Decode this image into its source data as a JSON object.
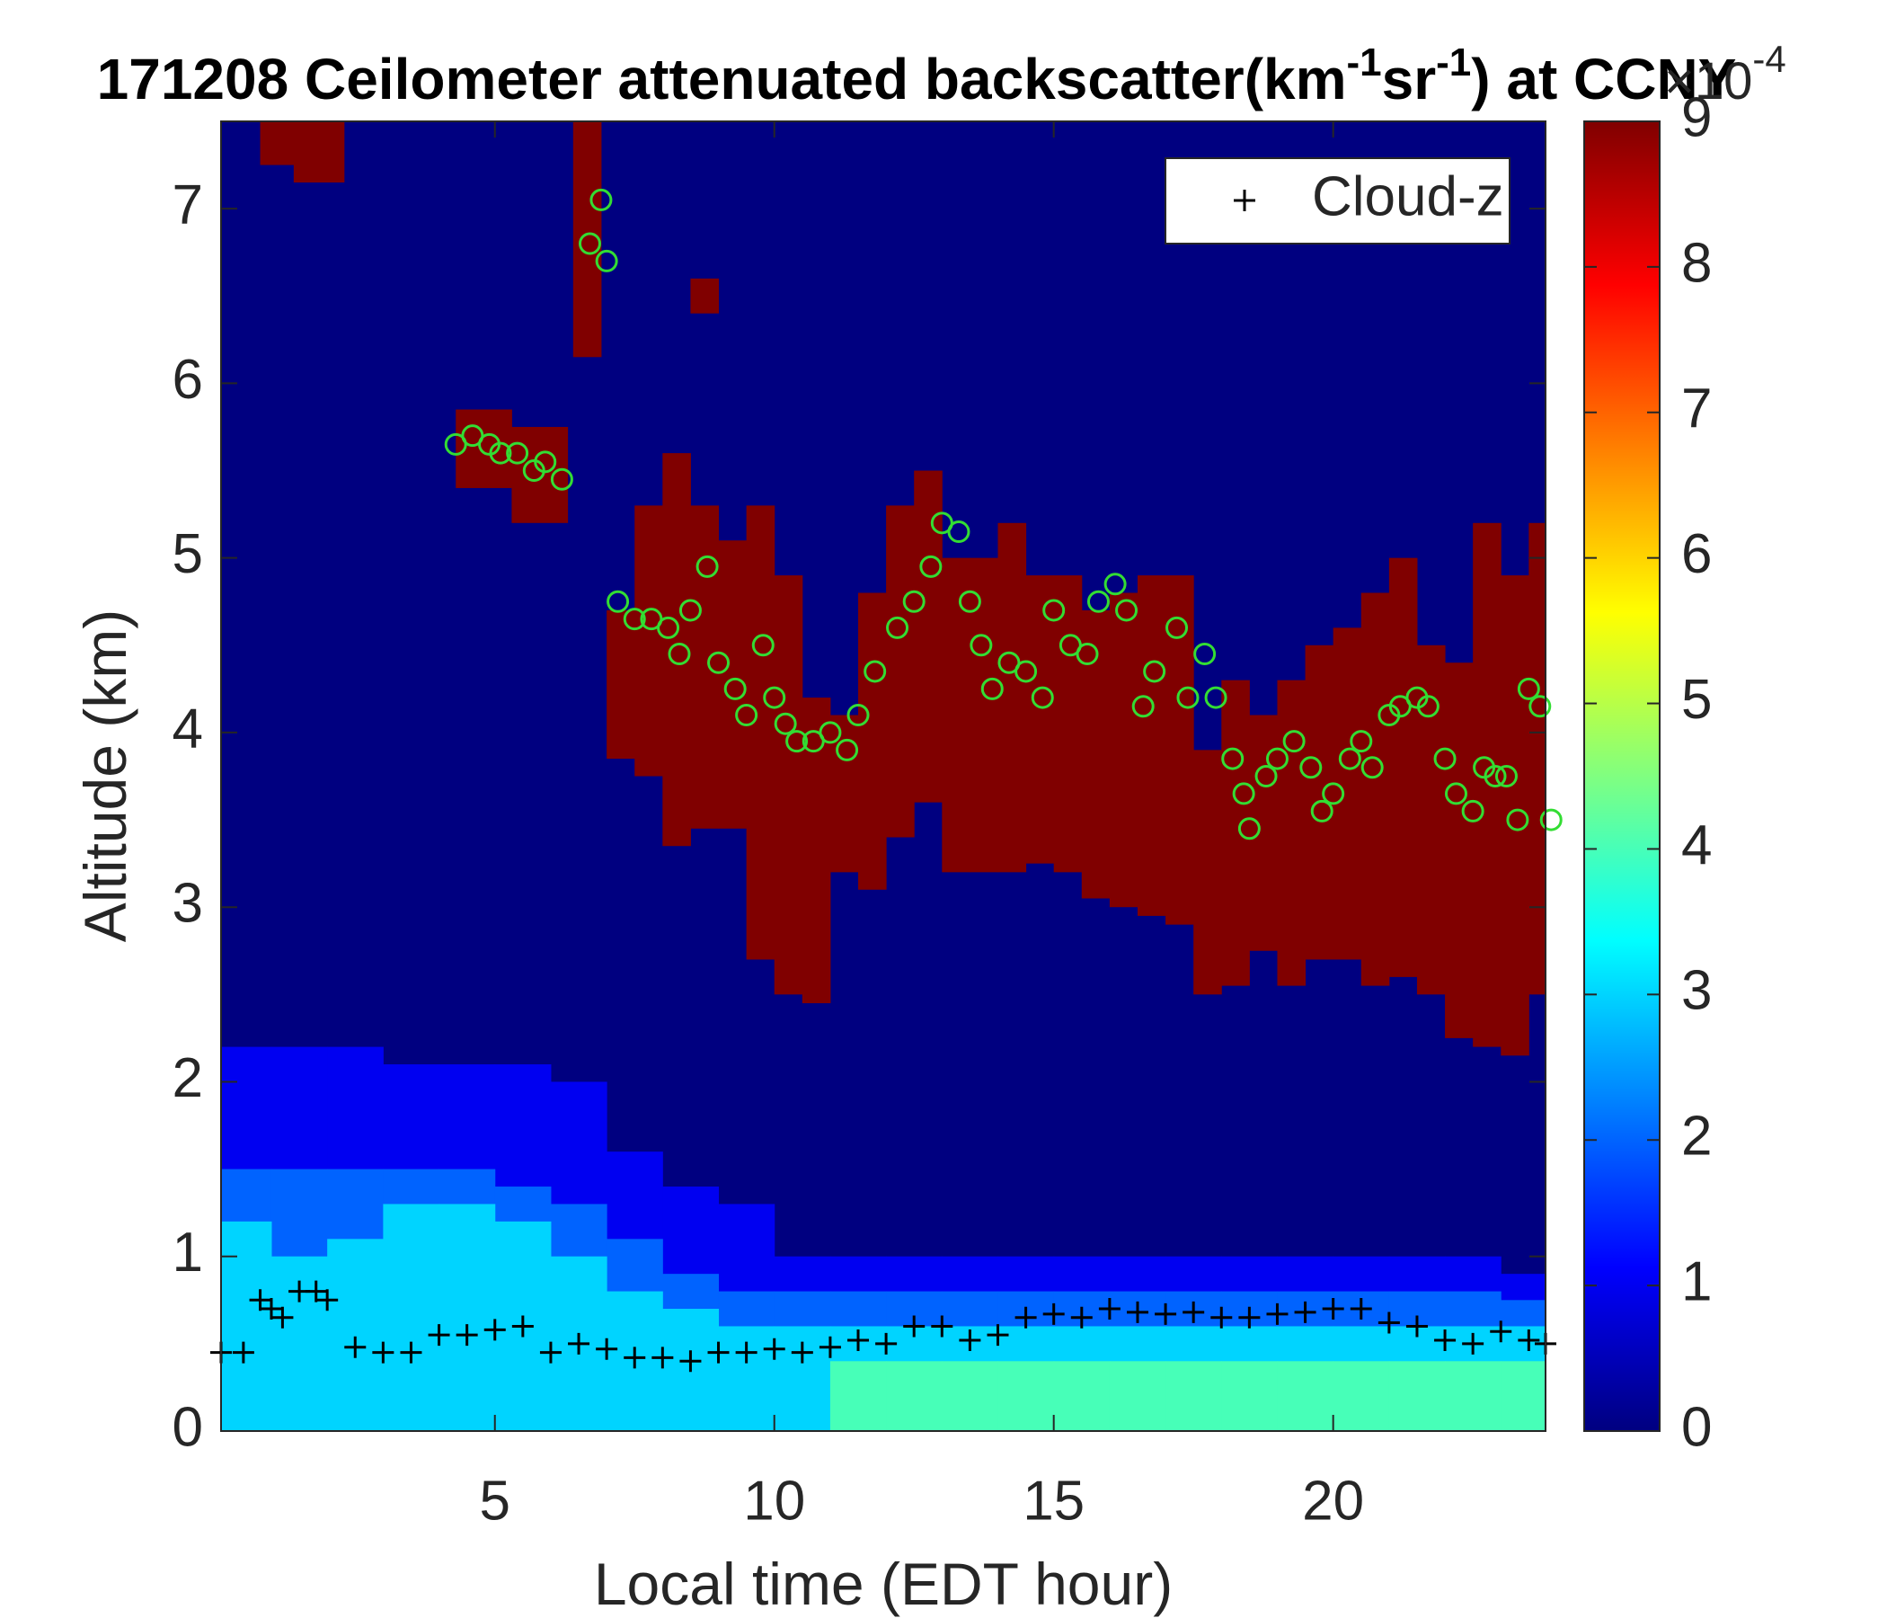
{
  "chart_data": {
    "type": "heatmap",
    "title": [
      "171208 Ceilometer attenuated backscatter(km",
      "-1",
      "sr",
      "-1",
      ") at CCNY"
    ],
    "x_label": "Local time (EDT hour)",
    "y_label": "Altitude (km)",
    "xlim": [
      0.1,
      23.8
    ],
    "xticks": [
      5,
      10,
      15,
      20
    ],
    "ylim": [
      0,
      7.5
    ],
    "yticks": [
      0,
      1,
      2,
      3,
      4,
      5,
      6,
      7
    ],
    "legend": "upper right",
    "colorbar": {
      "lim": [
        0,
        9
      ],
      "ticks": [
        0,
        1,
        2,
        3,
        4,
        5,
        6,
        7,
        8,
        9
      ],
      "multiplier": "×10",
      "exponent": "-4"
    },
    "layers": [
      {
        "value": 1,
        "x_edges": [
          0.1,
          1,
          2,
          3,
          4,
          5,
          6,
          7,
          8,
          9,
          10,
          11,
          12,
          13,
          14,
          15,
          16,
          17,
          18,
          19,
          20,
          21,
          22,
          23,
          23.8
        ],
        "top": [
          2.2,
          2.2,
          2.2,
          2.1,
          2.1,
          2.1,
          2.0,
          1.6,
          1.4,
          1.3,
          1.0,
          1.0,
          1.0,
          1.0,
          1.0,
          1.0,
          1.0,
          1.0,
          1.0,
          1.0,
          1.0,
          1.0,
          1.0,
          0.9
        ]
      },
      {
        "value": 2,
        "x_edges": [
          0.1,
          1,
          2,
          3,
          4,
          5,
          6,
          7,
          8,
          9,
          10,
          11,
          12,
          13,
          14,
          15,
          16,
          17,
          18,
          19,
          20,
          21,
          22,
          23,
          23.8
        ],
        "top": [
          1.5,
          1.5,
          1.5,
          1.5,
          1.5,
          1.4,
          1.3,
          1.1,
          0.9,
          0.8,
          0.8,
          0.8,
          0.8,
          0.8,
          0.8,
          0.8,
          0.8,
          0.8,
          0.8,
          0.8,
          0.8,
          0.8,
          0.8,
          0.75
        ]
      },
      {
        "value": 3,
        "x_edges": [
          0.1,
          1,
          2,
          3,
          4,
          5,
          6,
          7,
          8,
          9,
          10,
          11,
          12,
          13,
          14,
          15,
          16,
          17,
          18,
          19,
          20,
          21,
          22,
          23,
          23.8
        ],
        "top": [
          1.2,
          1.0,
          1.1,
          1.3,
          1.3,
          1.2,
          1.0,
          0.8,
          0.7,
          0.6,
          0.6,
          0.6,
          0.6,
          0.6,
          0.6,
          0.6,
          0.6,
          0.6,
          0.6,
          0.6,
          0.6,
          0.6,
          0.6,
          0.6
        ]
      },
      {
        "value": 4,
        "x_edges": [
          11,
          12,
          13,
          14,
          15,
          16,
          17,
          18,
          19,
          20,
          21,
          22,
          23,
          23.8
        ],
        "top": [
          0.4,
          0.4,
          0.4,
          0.4,
          0.4,
          0.4,
          0.4,
          0.4,
          0.4,
          0.4,
          0.4,
          0.4,
          0.4
        ]
      },
      {
        "value": 9,
        "x_edges": [
          0.8,
          1.4,
          2.3
        ],
        "bottom": [
          7.25,
          7.15
        ],
        "top": [
          7.5,
          7.5
        ]
      },
      {
        "value": 9,
        "x_edges": [
          4.3,
          5.3,
          6.3
        ],
        "bottom": [
          5.4,
          5.2
        ],
        "top": [
          5.85,
          5.75
        ]
      },
      {
        "value": 9,
        "x_edges": [
          6.4,
          6.9
        ],
        "bottom": [
          6.15
        ],
        "top": [
          7.5
        ]
      },
      {
        "value": 9,
        "x_edges": [
          8.5,
          9.0
        ],
        "bottom": [
          6.4
        ],
        "top": [
          6.6
        ]
      },
      {
        "value": 9,
        "x_edges": [
          7,
          7.5,
          8,
          8.5,
          9,
          9.5,
          10,
          10.5,
          11,
          11.5,
          12,
          12.5,
          13,
          13.5,
          14,
          14.5,
          15,
          15.5,
          16,
          16.5,
          17,
          17.5,
          18,
          18.5,
          19,
          19.5,
          20,
          20.5,
          21,
          21.5,
          22,
          22.5,
          23,
          23.5,
          23.8
        ],
        "bottom": [
          3.85,
          3.75,
          3.35,
          3.45,
          3.45,
          2.7,
          2.5,
          2.45,
          3.2,
          3.1,
          3.4,
          3.6,
          3.2,
          3.2,
          3.2,
          3.25,
          3.2,
          3.05,
          3.0,
          2.95,
          2.9,
          2.5,
          2.55,
          2.75,
          2.55,
          2.7,
          2.7,
          2.55,
          2.6,
          2.5,
          2.25,
          2.2,
          2.15,
          2.5
        ],
        "top": [
          4.7,
          5.3,
          5.6,
          5.3,
          5.1,
          5.3,
          4.9,
          4.2,
          4.1,
          4.8,
          5.3,
          5.5,
          5.0,
          5.0,
          5.2,
          4.9,
          4.9,
          4.7,
          4.8,
          4.9,
          4.9,
          3.9,
          4.3,
          4.1,
          4.3,
          4.5,
          4.6,
          4.8,
          5.0,
          4.5,
          4.4,
          5.2,
          4.9,
          5.2
        ]
      }
    ],
    "series": [
      {
        "name": "Cloud-z",
        "color": "#000000",
        "marker": "+",
        "x": [
          0.1,
          0.5,
          0.8,
          1.0,
          1.2,
          1.5,
          1.8,
          2.0,
          2.5,
          3.0,
          3.5,
          4.0,
          4.5,
          5.0,
          5.5,
          6.0,
          6.5,
          7.0,
          7.5,
          8.0,
          8.5,
          9.0,
          9.5,
          10.0,
          10.5,
          11.0,
          11.5,
          12.0,
          12.5,
          13.0,
          13.5,
          14.0,
          14.5,
          15.0,
          15.5,
          16.0,
          16.5,
          17.0,
          17.5,
          18.0,
          18.5,
          19.0,
          19.5,
          20.0,
          20.5,
          21.0,
          21.5,
          22.0,
          22.5,
          23.0,
          23.5,
          23.8
        ],
        "values": [
          0.45,
          0.45,
          0.75,
          0.7,
          0.65,
          0.8,
          0.8,
          0.75,
          0.48,
          0.45,
          0.45,
          0.55,
          0.55,
          0.58,
          0.6,
          0.45,
          0.5,
          0.47,
          0.42,
          0.42,
          0.4,
          0.45,
          0.45,
          0.47,
          0.45,
          0.48,
          0.52,
          0.5,
          0.6,
          0.6,
          0.52,
          0.55,
          0.65,
          0.67,
          0.65,
          0.7,
          0.68,
          0.67,
          0.68,
          0.65,
          0.65,
          0.67,
          0.68,
          0.7,
          0.7,
          0.62,
          0.6,
          0.52,
          0.5,
          0.57,
          0.52,
          0.5
        ]
      },
      {
        "color": "#33dd33",
        "marker": "o",
        "x": [
          4.3,
          4.6,
          4.9,
          5.1,
          5.4,
          5.7,
          5.9,
          6.2,
          6.7,
          6.9,
          7.0,
          7.2,
          7.5,
          7.8,
          8.1,
          8.3,
          8.5,
          8.8,
          9.0,
          9.3,
          9.5,
          9.8,
          10.0,
          10.2,
          10.4,
          10.7,
          11.0,
          11.3,
          11.5,
          11.8,
          12.2,
          12.5,
          12.8,
          13.0,
          13.3,
          13.5,
          13.7,
          13.9,
          14.2,
          14.5,
          14.8,
          15.0,
          15.3,
          15.6,
          15.8,
          16.1,
          16.3,
          16.6,
          16.8,
          17.2,
          17.4,
          17.7,
          17.9,
          18.2,
          18.4,
          18.5,
          18.8,
          19.0,
          19.3,
          19.6,
          19.8,
          20.0,
          20.3,
          20.5,
          20.7,
          21.0,
          21.2,
          21.5,
          21.7,
          22.0,
          22.2,
          22.5,
          22.7,
          22.9,
          23.1,
          23.3,
          23.5,
          23.7,
          23.9
        ],
        "values": [
          5.65,
          5.7,
          5.65,
          5.6,
          5.6,
          5.5,
          5.55,
          5.45,
          6.8,
          7.05,
          6.7,
          4.75,
          4.65,
          4.65,
          4.6,
          4.45,
          4.7,
          4.95,
          4.4,
          4.25,
          4.1,
          4.5,
          4.2,
          4.05,
          3.95,
          3.95,
          4.0,
          3.9,
          4.1,
          4.35,
          4.6,
          4.75,
          4.95,
          5.2,
          5.15,
          4.75,
          4.5,
          4.25,
          4.4,
          4.35,
          4.2,
          4.7,
          4.5,
          4.45,
          4.75,
          4.85,
          4.7,
          4.15,
          4.35,
          4.6,
          4.2,
          4.45,
          4.2,
          3.85,
          3.65,
          3.45,
          3.75,
          3.85,
          3.95,
          3.8,
          3.55,
          3.65,
          3.85,
          3.95,
          3.8,
          4.1,
          4.15,
          4.2,
          4.15,
          3.85,
          3.65,
          3.55,
          3.8,
          3.75,
          3.75,
          3.5,
          4.25,
          4.15,
          3.5
        ]
      }
    ]
  }
}
